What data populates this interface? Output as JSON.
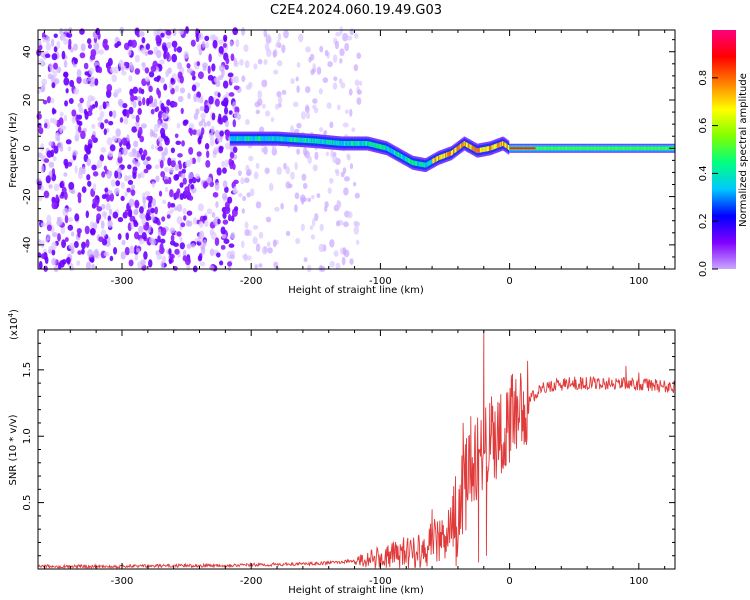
{
  "title": "C2E4.2024.060.19.49.G03",
  "colors": {
    "snr_line": "#e03a3a",
    "background": "#ffffff"
  },
  "chart_data": [
    {
      "type": "heatmap",
      "xlabel": "Height of straight line (km)",
      "ylabel": "Frequency (Hz)",
      "xlim": [
        -365,
        128
      ],
      "ylim": [
        -50,
        49
      ],
      "x_ticks": [
        -300,
        -200,
        -100,
        0,
        100
      ],
      "y_ticks": [
        -40,
        -20,
        0,
        20,
        40
      ],
      "grid": false,
      "ridge": {
        "description_points": [
          {
            "x": -215,
            "y": 4
          },
          {
            "x": -180,
            "y": 4
          },
          {
            "x": -150,
            "y": 3
          },
          {
            "x": -130,
            "y": 2
          },
          {
            "x": -110,
            "y": 2
          },
          {
            "x": -95,
            "y": 0
          },
          {
            "x": -85,
            "y": -3
          },
          {
            "x": -75,
            "y": -6
          },
          {
            "x": -65,
            "y": -7
          },
          {
            "x": -55,
            "y": -4
          },
          {
            "x": -45,
            "y": -2
          },
          {
            "x": -35,
            "y": 2
          },
          {
            "x": -25,
            "y": -1
          },
          {
            "x": -15,
            "y": 0
          },
          {
            "x": -5,
            "y": 2
          },
          {
            "x": 0,
            "y": 0
          },
          {
            "x": 128,
            "y": 0
          }
        ]
      },
      "colorbar": {
        "label": "Normalized spectral amplitude",
        "ticks": [
          0.0,
          0.2,
          0.4,
          0.6,
          0.8
        ],
        "range": [
          0,
          1
        ],
        "colors": [
          "#c9a8ff",
          "#8000ff",
          "#0000ff",
          "#00c8ff",
          "#00ff80",
          "#80ff00",
          "#ffff00",
          "#ff8000",
          "#ff0000",
          "#ff0080"
        ]
      }
    },
    {
      "type": "line",
      "xlabel": "Height of straight line (km)",
      "ylabel": "SNR (10 * v/v)",
      "y_multiplier": "(x10",
      "y_multiplier_exp": "4",
      "y_multiplier_close": ")",
      "xlim": [
        -365,
        128
      ],
      "ylim": [
        0,
        1.8
      ],
      "x_ticks": [
        -300,
        -200,
        -100,
        0,
        100
      ],
      "y_ticks": [
        0.5,
        1.0,
        1.5
      ],
      "y_tick_labels": [
        "0.5",
        "1.0",
        "1.5"
      ],
      "grid": false,
      "series": [
        {
          "values_trend": [
            {
              "x": -365,
              "y": 0.02
            },
            {
              "x": -300,
              "y": 0.02
            },
            {
              "x": -250,
              "y": 0.025
            },
            {
              "x": -200,
              "y": 0.03
            },
            {
              "x": -150,
              "y": 0.04
            },
            {
              "x": -120,
              "y": 0.06
            },
            {
              "x": -100,
              "y": 0.08
            },
            {
              "x": -80,
              "y": 0.12
            },
            {
              "x": -65,
              "y": 0.17
            },
            {
              "x": -55,
              "y": 0.22
            },
            {
              "x": -45,
              "y": 0.3
            },
            {
              "x": -40,
              "y": 0.4
            },
            {
              "x": -35,
              "y": 0.6
            },
            {
              "x": -30,
              "y": 0.75
            },
            {
              "x": -25,
              "y": 0.85
            },
            {
              "x": -20,
              "y": 0.9
            },
            {
              "x": -15,
              "y": 0.95
            },
            {
              "x": -10,
              "y": 1.0
            },
            {
              "x": -5,
              "y": 1.05
            },
            {
              "x": 0,
              "y": 1.1
            },
            {
              "x": 10,
              "y": 1.22
            },
            {
              "x": 20,
              "y": 1.32
            },
            {
              "x": 30,
              "y": 1.38
            },
            {
              "x": 50,
              "y": 1.4
            },
            {
              "x": 80,
              "y": 1.4
            },
            {
              "x": 100,
              "y": 1.39
            },
            {
              "x": 128,
              "y": 1.37
            }
          ],
          "spikes": [
            {
              "x": -68,
              "y": 0.18
            },
            {
              "x": -62,
              "y": 0.22
            },
            {
              "x": -60,
              "y": 0.45
            },
            {
              "x": -52,
              "y": 0.3
            },
            {
              "x": -44,
              "y": 0.55
            },
            {
              "x": -36,
              "y": 1.1
            },
            {
              "x": -30,
              "y": 1.15
            },
            {
              "x": -24,
              "y": 0.05
            },
            {
              "x": -20,
              "y": 1.8
            },
            {
              "x": -18,
              "y": 0.1
            },
            {
              "x": -14,
              "y": 1.3
            },
            {
              "x": -8,
              "y": 1.25
            },
            {
              "x": 0,
              "y": 1.2
            },
            {
              "x": 90,
              "y": 1.53
            },
            {
              "x": 100,
              "y": 1.48
            }
          ]
        }
      ]
    }
  ]
}
